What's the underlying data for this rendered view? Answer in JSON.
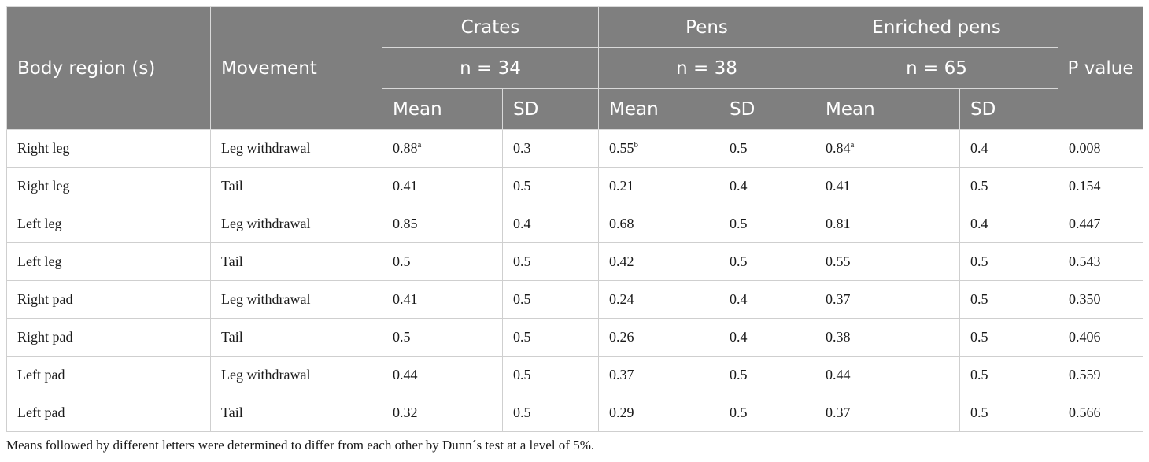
{
  "table": {
    "headers": {
      "body_region": "Body region (s)",
      "movement": "Movement",
      "groups": [
        {
          "name": "Crates",
          "n": "n = 34"
        },
        {
          "name": "Pens",
          "n": "n = 38"
        },
        {
          "name": "Enriched pens",
          "n": "n = 65"
        }
      ],
      "mean": "Mean",
      "sd": "SD",
      "p_value": "P value"
    },
    "rows": [
      {
        "region": "Right leg",
        "movement": "Leg withdrawal",
        "crates_mean": "0.88",
        "crates_mean_sup": "a",
        "crates_sd": "0.3",
        "pens_mean": "0.55",
        "pens_mean_sup": "b",
        "pens_sd": "0.5",
        "enriched_mean": "0.84",
        "enriched_mean_sup": "a",
        "enriched_sd": "0.4",
        "p": "0.008"
      },
      {
        "region": "Right leg",
        "movement": "Tail",
        "crates_mean": "0.41",
        "crates_mean_sup": "",
        "crates_sd": "0.5",
        "pens_mean": "0.21",
        "pens_mean_sup": "",
        "pens_sd": "0.4",
        "enriched_mean": "0.41",
        "enriched_mean_sup": "",
        "enriched_sd": "0.5",
        "p": "0.154"
      },
      {
        "region": "Left leg",
        "movement": "Leg withdrawal",
        "crates_mean": "0.85",
        "crates_mean_sup": "",
        "crates_sd": "0.4",
        "pens_mean": "0.68",
        "pens_mean_sup": "",
        "pens_sd": "0.5",
        "enriched_mean": "0.81",
        "enriched_mean_sup": "",
        "enriched_sd": "0.4",
        "p": "0.447"
      },
      {
        "region": "Left leg",
        "movement": "Tail",
        "crates_mean": "0.5",
        "crates_mean_sup": "",
        "crates_sd": "0.5",
        "pens_mean": "0.42",
        "pens_mean_sup": "",
        "pens_sd": "0.5",
        "enriched_mean": "0.55",
        "enriched_mean_sup": "",
        "enriched_sd": "0.5",
        "p": "0.543"
      },
      {
        "region": "Right pad",
        "movement": "Leg withdrawal",
        "crates_mean": "0.41",
        "crates_mean_sup": "",
        "crates_sd": "0.5",
        "pens_mean": "0.24",
        "pens_mean_sup": "",
        "pens_sd": "0.4",
        "enriched_mean": "0.37",
        "enriched_mean_sup": "",
        "enriched_sd": "0.5",
        "p": "0.350"
      },
      {
        "region": "Right pad",
        "movement": "Tail",
        "crates_mean": "0.5",
        "crates_mean_sup": "",
        "crates_sd": "0.5",
        "pens_mean": "0.26",
        "pens_mean_sup": "",
        "pens_sd": "0.4",
        "enriched_mean": "0.38",
        "enriched_mean_sup": "",
        "enriched_sd": "0.5",
        "p": "0.406"
      },
      {
        "region": "Left pad",
        "movement": "Leg withdrawal",
        "crates_mean": "0.44",
        "crates_mean_sup": "",
        "crates_sd": "0.5",
        "pens_mean": "0.37",
        "pens_mean_sup": "",
        "pens_sd": "0.5",
        "enriched_mean": "0.44",
        "enriched_mean_sup": "",
        "enriched_sd": "0.5",
        "p": "0.559"
      },
      {
        "region": "Left pad",
        "movement": "Tail",
        "crates_mean": "0.32",
        "crates_mean_sup": "",
        "crates_sd": "0.5",
        "pens_mean": "0.29",
        "pens_mean_sup": "",
        "pens_sd": "0.5",
        "enriched_mean": "0.37",
        "enriched_mean_sup": "",
        "enriched_sd": "0.5",
        "p": "0.566"
      }
    ],
    "footnote": "Means followed by different letters were determined to differ from each other by Dunn´s test at a level of 5%."
  },
  "colors": {
    "header_bg": "#7f7f7f",
    "header_text": "#ffffff",
    "grid": "#cfcfcf"
  }
}
